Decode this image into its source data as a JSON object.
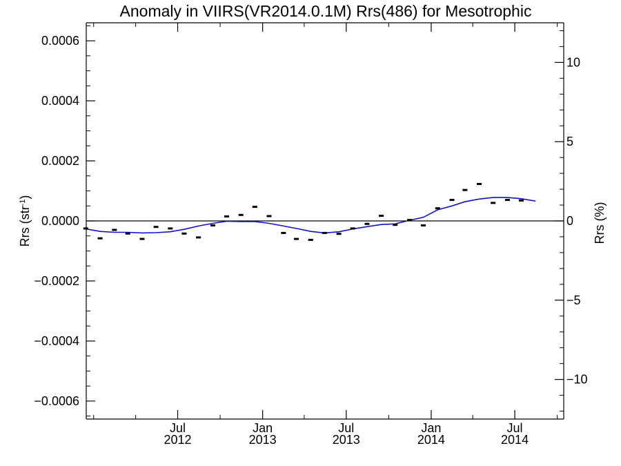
{
  "chart_data": {
    "type": "line",
    "title": "Anomaly in VIIRS(VR2014.0.1M) Rrs(486) for Mesotrophic",
    "ylabel_left": {
      "base": "Rrs (str",
      "sup": "-1",
      "close": ")"
    },
    "ylabel_right": "Rrs (%)",
    "xlim": [
      "2011-12-16",
      "2014-10-15"
    ],
    "ylim_left": [
      -0.00066,
      0.00066
    ],
    "ylim_right": [
      -12.5,
      12.5
    ],
    "left_ticks": [
      {
        "value": 0.0006,
        "label": "0.0006"
      },
      {
        "value": 0.0004,
        "label": "0.0004"
      },
      {
        "value": 0.0002,
        "label": "0.0002"
      },
      {
        "value": 0.0,
        "label": "0.0000"
      },
      {
        "value": -0.0002,
        "label": "−0.0002"
      },
      {
        "value": -0.0004,
        "label": "−0.0004"
      },
      {
        "value": -0.0006,
        "label": "−0.0006"
      }
    ],
    "right_ticks": [
      {
        "value": 10,
        "label": "10"
      },
      {
        "value": 5,
        "label": "5"
      },
      {
        "value": 0,
        "label": "0"
      },
      {
        "value": -5,
        "label": "−5"
      },
      {
        "value": -10,
        "label": "−10"
      }
    ],
    "x_ticks": [
      {
        "date": "2012-07-01",
        "month": "Jul",
        "year": "2012"
      },
      {
        "date": "2013-01-01",
        "month": "Jan",
        "year": "2013"
      },
      {
        "date": "2013-07-01",
        "month": "Jul",
        "year": "2013"
      },
      {
        "date": "2014-01-01",
        "month": "Jan",
        "year": "2014"
      },
      {
        "date": "2014-07-01",
        "month": "Jul",
        "year": "2014"
      }
    ],
    "x_minor_ticks": [
      "2012-01-01",
      "2012-04-01",
      "2012-10-01",
      "2013-04-01",
      "2013-10-01",
      "2014-04-01",
      "2014-10-01"
    ],
    "series": [
      {
        "kind": "monthly-anomaly-markers",
        "color": "#000000",
        "points": [
          {
            "x": "2011-12-15",
            "y": -2.5e-05
          },
          {
            "x": "2012-01-15",
            "y": -5.8e-05
          },
          {
            "x": "2012-02-15",
            "y": -3e-05
          },
          {
            "x": "2012-03-15",
            "y": -4.2e-05
          },
          {
            "x": "2012-04-15",
            "y": -6e-05
          },
          {
            "x": "2012-05-15",
            "y": -2e-05
          },
          {
            "x": "2012-06-15",
            "y": -2.5e-05
          },
          {
            "x": "2012-07-15",
            "y": -4.2e-05
          },
          {
            "x": "2012-08-15",
            "y": -5.5e-05
          },
          {
            "x": "2012-09-15",
            "y": -1.5e-05
          },
          {
            "x": "2012-10-15",
            "y": 1.5e-05
          },
          {
            "x": "2012-11-15",
            "y": 2e-05
          },
          {
            "x": "2012-12-15",
            "y": 4.7e-05
          },
          {
            "x": "2013-01-15",
            "y": 1.6e-05
          },
          {
            "x": "2013-02-15",
            "y": -4e-05
          },
          {
            "x": "2013-03-15",
            "y": -6e-05
          },
          {
            "x": "2013-04-15",
            "y": -6.3e-05
          },
          {
            "x": "2013-05-15",
            "y": -4e-05
          },
          {
            "x": "2013-06-15",
            "y": -4.3e-05
          },
          {
            "x": "2013-07-15",
            "y": -2.5e-05
          },
          {
            "x": "2013-08-15",
            "y": -1e-05
          },
          {
            "x": "2013-09-15",
            "y": 1.7e-05
          },
          {
            "x": "2013-10-15",
            "y": -1.3e-05
          },
          {
            "x": "2013-11-15",
            "y": 3e-06
          },
          {
            "x": "2013-12-15",
            "y": -1.5e-05
          },
          {
            "x": "2014-01-15",
            "y": 4.2e-05
          },
          {
            "x": "2014-02-15",
            "y": 7e-05
          },
          {
            "x": "2014-03-15",
            "y": 0.000103
          },
          {
            "x": "2014-04-15",
            "y": 0.000123
          },
          {
            "x": "2014-05-15",
            "y": 6e-05
          },
          {
            "x": "2014-06-15",
            "y": 7e-05
          },
          {
            "x": "2014-07-15",
            "y": 6.8e-05
          }
        ]
      },
      {
        "kind": "smoothed-line",
        "color": "#1010d0",
        "points": [
          {
            "x": "2011-12-16",
            "y": -2.7e-05
          },
          {
            "x": "2012-01-15",
            "y": -3.5e-05
          },
          {
            "x": "2012-02-15",
            "y": -3.8e-05
          },
          {
            "x": "2012-03-15",
            "y": -3.8e-05
          },
          {
            "x": "2012-04-15",
            "y": -4e-05
          },
          {
            "x": "2012-05-15",
            "y": -3.9e-05
          },
          {
            "x": "2012-06-15",
            "y": -3.6e-05
          },
          {
            "x": "2012-07-15",
            "y": -2.8e-05
          },
          {
            "x": "2012-08-15",
            "y": -1.7e-05
          },
          {
            "x": "2012-09-15",
            "y": -8e-06
          },
          {
            "x": "2012-10-15",
            "y": -1e-06
          },
          {
            "x": "2012-11-15",
            "y": -2e-06
          },
          {
            "x": "2012-12-15",
            "y": -2e-06
          },
          {
            "x": "2013-01-15",
            "y": -8e-06
          },
          {
            "x": "2013-02-15",
            "y": -1.7e-05
          },
          {
            "x": "2013-03-15",
            "y": -2.5e-05
          },
          {
            "x": "2013-04-15",
            "y": -3.5e-05
          },
          {
            "x": "2013-05-15",
            "y": -4e-05
          },
          {
            "x": "2013-06-15",
            "y": -3.6e-05
          },
          {
            "x": "2013-07-15",
            "y": -2.7e-05
          },
          {
            "x": "2013-08-15",
            "y": -1.9e-05
          },
          {
            "x": "2013-09-15",
            "y": -1.2e-05
          },
          {
            "x": "2013-10-15",
            "y": -1e-05
          },
          {
            "x": "2013-11-15",
            "y": 2e-06
          },
          {
            "x": "2013-12-15",
            "y": 1.2e-05
          },
          {
            "x": "2014-01-15",
            "y": 3.7e-05
          },
          {
            "x": "2014-02-15",
            "y": 5e-05
          },
          {
            "x": "2014-03-15",
            "y": 6.4e-05
          },
          {
            "x": "2014-04-15",
            "y": 7.3e-05
          },
          {
            "x": "2014-05-15",
            "y": 7.8e-05
          },
          {
            "x": "2014-06-15",
            "y": 7.8e-05
          },
          {
            "x": "2014-07-15",
            "y": 7.4e-05
          },
          {
            "x": "2014-08-15",
            "y": 6.6e-05
          }
        ]
      }
    ]
  }
}
